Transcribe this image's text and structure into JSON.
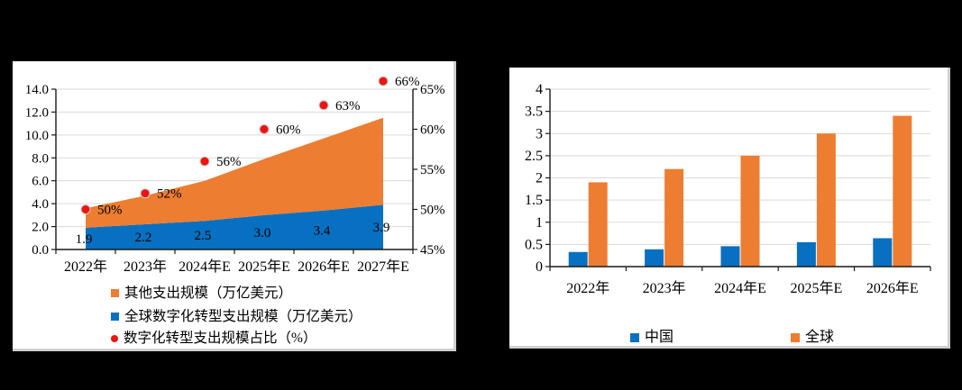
{
  "colors": {
    "blue": "#0870C0",
    "orange": "#ED7D31",
    "red": "#F01212",
    "grid": "#D9D9D9",
    "axis": "#1a1a1a",
    "panel": "#FFFFFF",
    "background": "#000000",
    "dot_ring": "#cccccc"
  },
  "chart_data": [
    {
      "type": "area",
      "title": "",
      "categories": [
        "2022年",
        "2023年",
        "2024年E",
        "2025年E",
        "2026年E",
        "2027年E"
      ],
      "series": [
        {
          "name": "全球数字化转型支出规模（万亿美元）",
          "role": "stacked-area",
          "color": "blue",
          "values": [
            1.9,
            2.2,
            2.5,
            3.0,
            3.4,
            3.9
          ],
          "data_labels": [
            "1.9",
            "2.2",
            "2.5",
            "3.0",
            "3.4",
            "3.9"
          ]
        },
        {
          "name": "其他支出规模（万亿美元）",
          "role": "stacked-area",
          "color": "orange",
          "values": [
            1.7,
            2.5,
            3.5,
            4.9,
            6.3,
            7.6
          ]
        },
        {
          "name": "数字化转型支出规模占比（%）",
          "role": "scatter",
          "axis": "right",
          "color": "red",
          "values": [
            50,
            52,
            56,
            60,
            63,
            66
          ],
          "data_labels": [
            "50%",
            "52%",
            "56%",
            "60%",
            "63%",
            "66%"
          ]
        }
      ],
      "left_axis": {
        "min": 0,
        "max": 14,
        "step": 2,
        "ticks": [
          "0.0",
          "2.0",
          "4.0",
          "6.0",
          "8.0",
          "10.0",
          "12.0",
          "14.0"
        ]
      },
      "right_axis": {
        "min": 45,
        "max": 65,
        "step": 5,
        "ticks": [
          "45%",
          "50%",
          "55%",
          "60%",
          "65%"
        ]
      },
      "grid": true,
      "legend_position": "bottom-left",
      "legend": [
        {
          "marker": "square",
          "color": "orange",
          "label": "其他支出规模（万亿美元）"
        },
        {
          "marker": "square",
          "color": "blue",
          "label": "全球数字化转型支出规模（万亿美元）"
        },
        {
          "marker": "dot",
          "color": "red",
          "label": "数字化转型支出规模占比（%）"
        }
      ]
    },
    {
      "type": "bar",
      "title": "",
      "categories": [
        "2022年",
        "2023年",
        "2024年E",
        "2025年E",
        "2026年E"
      ],
      "series": [
        {
          "name": "中国",
          "color": "blue",
          "values": [
            0.33,
            0.39,
            0.46,
            0.55,
            0.64
          ]
        },
        {
          "name": "全球",
          "color": "orange",
          "values": [
            1.9,
            2.2,
            2.5,
            3.0,
            3.4
          ]
        }
      ],
      "y_axis": {
        "min": 0,
        "max": 4,
        "step": 0.5,
        "ticks": [
          "0",
          "0.5",
          "1",
          "1.5",
          "2",
          "2.5",
          "3",
          "3.5",
          "4"
        ]
      },
      "grid": true,
      "legend_position": "bottom",
      "legend": [
        {
          "marker": "square",
          "color": "blue",
          "label": "中国"
        },
        {
          "marker": "square",
          "color": "orange",
          "label": "全球"
        }
      ]
    }
  ]
}
